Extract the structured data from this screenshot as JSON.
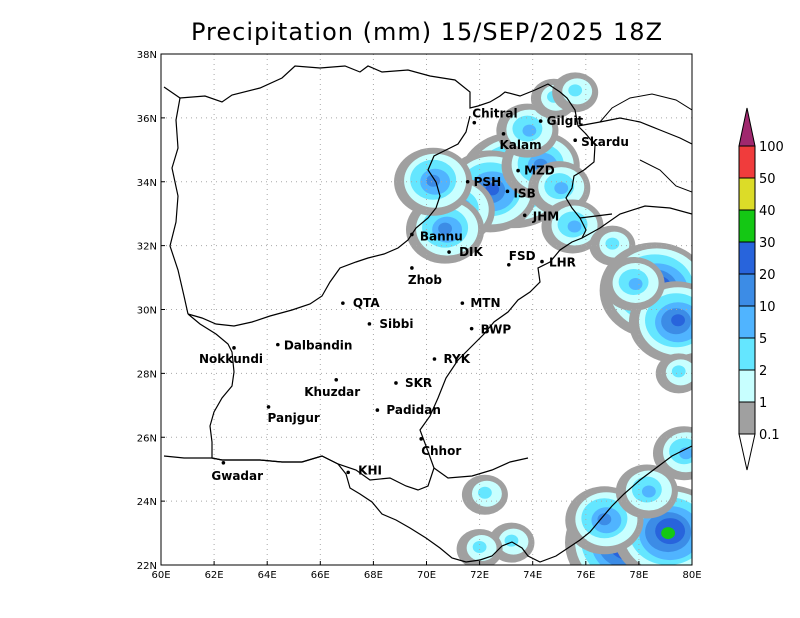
{
  "title": "Precipitation (mm) 15/SEP/2025 18Z",
  "map": {
    "lon_range": [
      60,
      80
    ],
    "lat_range": [
      22,
      38
    ],
    "x_ticks": [
      "60E",
      "62E",
      "64E",
      "66E",
      "68E",
      "70E",
      "72E",
      "74E",
      "76E",
      "78E",
      "80E"
    ],
    "y_ticks": [
      "22N",
      "24N",
      "26N",
      "28N",
      "30N",
      "32N",
      "34N",
      "36N",
      "38N"
    ],
    "grid": true,
    "cities": [
      {
        "name": "Chitral",
        "lon": 71.8,
        "lat": 35.85
      },
      {
        "name": "Gilgit",
        "lon": 74.3,
        "lat": 35.9
      },
      {
        "name": "Kalam",
        "lon": 72.9,
        "lat": 35.5
      },
      {
        "name": "Skardu",
        "lon": 75.6,
        "lat": 35.3
      },
      {
        "name": "MZD",
        "lon": 73.45,
        "lat": 34.35
      },
      {
        "name": "PSH",
        "lon": 71.55,
        "lat": 34.0
      },
      {
        "name": "ISB",
        "lon": 73.05,
        "lat": 33.7
      },
      {
        "name": "JHM",
        "lon": 73.7,
        "lat": 32.95
      },
      {
        "name": "Bannu",
        "lon": 69.45,
        "lat": 32.35
      },
      {
        "name": "DIK",
        "lon": 70.85,
        "lat": 31.8
      },
      {
        "name": "FSD",
        "lon": 73.1,
        "lat": 31.4
      },
      {
        "name": "LHR",
        "lon": 74.35,
        "lat": 31.5
      },
      {
        "name": "Zhob",
        "lon": 69.45,
        "lat": 31.3
      },
      {
        "name": "QTA",
        "lon": 66.85,
        "lat": 30.2
      },
      {
        "name": "MTN",
        "lon": 71.35,
        "lat": 30.2
      },
      {
        "name": "Sibbi",
        "lon": 67.85,
        "lat": 29.55
      },
      {
        "name": "BWP",
        "lon": 71.7,
        "lat": 29.4
      },
      {
        "name": "Nokkundi",
        "lon": 62.75,
        "lat": 28.8
      },
      {
        "name": "Dalbandin",
        "lon": 64.4,
        "lat": 28.9
      },
      {
        "name": "RYK",
        "lon": 70.3,
        "lat": 28.45
      },
      {
        "name": "Khuzdar",
        "lon": 66.6,
        "lat": 27.8
      },
      {
        "name": "SKR",
        "lon": 68.85,
        "lat": 27.7
      },
      {
        "name": "Panjgur",
        "lon": 64.05,
        "lat": 26.95
      },
      {
        "name": "Padidan",
        "lon": 68.15,
        "lat": 26.85
      },
      {
        "name": "Chhor",
        "lon": 69.8,
        "lat": 25.95
      },
      {
        "name": "KHI",
        "lon": 67.05,
        "lat": 24.9
      },
      {
        "name": "Gwadar",
        "lon": 62.35,
        "lat": 25.2
      }
    ],
    "precip_cells": [
      {
        "lon": 73.3,
        "lat": 34.05,
        "level": 6
      },
      {
        "lon": 72.4,
        "lat": 33.7,
        "level": 5
      },
      {
        "lon": 74.3,
        "lat": 34.5,
        "level": 4
      },
      {
        "lon": 75.0,
        "lat": 33.8,
        "level": 3
      },
      {
        "lon": 73.8,
        "lat": 35.6,
        "level": 3
      },
      {
        "lon": 74.8,
        "lat": 36.6,
        "level": 2
      },
      {
        "lon": 75.6,
        "lat": 36.8,
        "level": 2
      },
      {
        "lon": 71.1,
        "lat": 33.1,
        "level": 4
      },
      {
        "lon": 70.7,
        "lat": 32.5,
        "level": 4
      },
      {
        "lon": 70.25,
        "lat": 34.0,
        "level": 4
      },
      {
        "lon": 75.5,
        "lat": 32.6,
        "level": 3
      },
      {
        "lon": 77.0,
        "lat": 32.0,
        "level": 2
      },
      {
        "lon": 78.6,
        "lat": 30.6,
        "level": 6
      },
      {
        "lon": 79.4,
        "lat": 29.6,
        "level": 5
      },
      {
        "lon": 77.8,
        "lat": 30.8,
        "level": 3
      },
      {
        "lon": 77.6,
        "lat": 22.7,
        "level": 7
      },
      {
        "lon": 79.1,
        "lat": 23.0,
        "level": 6
      },
      {
        "lon": 76.7,
        "lat": 23.4,
        "level": 4
      },
      {
        "lon": 78.3,
        "lat": 24.3,
        "level": 3
      },
      {
        "lon": 72.2,
        "lat": 24.2,
        "level": 2
      },
      {
        "lon": 73.2,
        "lat": 22.7,
        "level": 2
      },
      {
        "lon": 79.7,
        "lat": 25.5,
        "level": 3
      },
      {
        "lon": 79.5,
        "lat": 28.0,
        "level": 2
      },
      {
        "lon": 72.0,
        "lat": 22.5,
        "level": 2
      }
    ]
  },
  "colorbar": {
    "labels": [
      "0.1",
      "1",
      "2",
      "5",
      "10",
      "20",
      "30",
      "40",
      "50",
      "100"
    ],
    "colors": [
      "#a0a0a0",
      "#c8ffff",
      "#64e6ff",
      "#50b4ff",
      "#3c8ce6",
      "#2864dc",
      "#14c814",
      "#dcdc28",
      "#f03c3c",
      "#a0286e"
    ]
  },
  "ink": {
    "map_color": "#000000",
    "grid_color": "#a8a8a8"
  }
}
